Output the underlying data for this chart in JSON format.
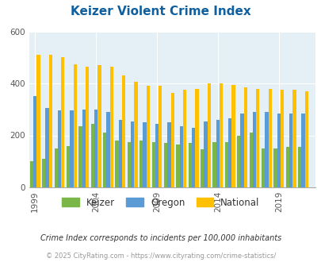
{
  "title": "Keizer Violent Crime Index",
  "title_color": "#1060a0",
  "subtitle": "Crime Index corresponds to incidents per 100,000 inhabitants",
  "footer": "© 2025 CityRating.com - https://www.cityrating.com/crime-statistics/",
  "years": [
    1999,
    2000,
    2001,
    2002,
    2003,
    2004,
    2005,
    2006,
    2007,
    2008,
    2009,
    2010,
    2011,
    2012,
    2013,
    2014,
    2015,
    2016,
    2017,
    2018,
    2019,
    2020,
    2021
  ],
  "keizer": [
    100,
    110,
    150,
    160,
    235,
    245,
    210,
    180,
    175,
    180,
    175,
    170,
    165,
    170,
    145,
    175,
    175,
    200,
    210,
    150,
    150,
    155,
    155
  ],
  "oregon": [
    350,
    305,
    295,
    295,
    300,
    300,
    290,
    260,
    255,
    250,
    245,
    250,
    235,
    230,
    255,
    260,
    265,
    285,
    290,
    290,
    285,
    285,
    285
  ],
  "national": [
    510,
    510,
    500,
    475,
    465,
    470,
    465,
    430,
    405,
    390,
    390,
    365,
    375,
    380,
    400,
    400,
    395,
    385,
    380,
    380,
    375,
    375,
    370
  ],
  "keizer_color": "#7ab648",
  "oregon_color": "#5b9bd5",
  "national_color": "#ffc000",
  "bg_color": "#e4f0f5",
  "ylim": [
    0,
    600
  ],
  "yticks": [
    0,
    200,
    400,
    600
  ],
  "bar_width": 0.28,
  "xtick_labels": [
    "1999",
    "2004",
    "2009",
    "2014",
    "2019"
  ],
  "xtick_positions": [
    1999,
    2004,
    2009,
    2014,
    2019
  ],
  "xlim": [
    1998.5,
    2022.0
  ]
}
